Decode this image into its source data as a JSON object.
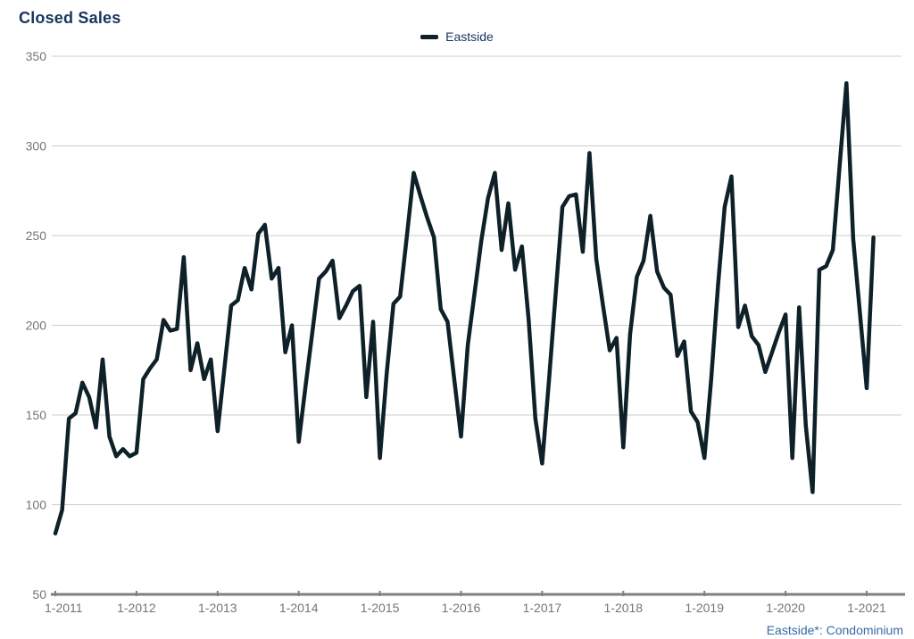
{
  "title": "Closed Sales",
  "legend": {
    "label": "Eastside"
  },
  "footnote": "Eastside*: Condominium",
  "colors": {
    "line": "#0e2028",
    "title_text": "#17365d",
    "legend_text": "#17365d",
    "footnote_text": "#376ca5",
    "axis_line": "#7f7f7f",
    "grid_line": "#cdcdcd",
    "tick_label": "#757575"
  },
  "chart_data": {
    "type": "line",
    "title": "Closed Sales",
    "series_name": "Eastside",
    "legend_position": "top-center",
    "grid": true,
    "ylim": [
      50,
      350
    ],
    "y_ticks": [
      50,
      100,
      150,
      200,
      250,
      300,
      350
    ],
    "x_tick_labels": [
      "1-2011",
      "1-2012",
      "1-2013",
      "1-2014",
      "1-2015",
      "1-2016",
      "1-2017",
      "1-2018",
      "1-2019",
      "1-2020",
      "1-2021"
    ],
    "x_is_monthly_from": "1-2011",
    "x_last_point": "2-2021",
    "series": [
      {
        "name": "Eastside",
        "monthly_values_by_year": {
          "2011": [
            84,
            97,
            148,
            151,
            168,
            160,
            143,
            181,
            138,
            127,
            131,
            127
          ],
          "2012": [
            129,
            170,
            176,
            181,
            203,
            197,
            198,
            238,
            175,
            190,
            170,
            181
          ],
          "2013": [
            141,
            176,
            211,
            214,
            232,
            220,
            251,
            256,
            226,
            232,
            185,
            200
          ],
          "2014": [
            135,
            166,
            196,
            226,
            230,
            236,
            204,
            211,
            219,
            222,
            160,
            202
          ],
          "2015": [
            126,
            173,
            212,
            216,
            250,
            285,
            272,
            260,
            249,
            209,
            202,
            170
          ],
          "2016": [
            138,
            189,
            218,
            247,
            271,
            285,
            242,
            268,
            231,
            244,
            203,
            148
          ],
          "2017": [
            123,
            169,
            218,
            266,
            272,
            273,
            241,
            296,
            237,
            211,
            186,
            193
          ],
          "2018": [
            132,
            195,
            227,
            236,
            261,
            230,
            221,
            217,
            183,
            191,
            152,
            146
          ],
          "2019": [
            126,
            170,
            222,
            266,
            283,
            199,
            211,
            194,
            189,
            174,
            185,
            196
          ],
          "2020": [
            206,
            126,
            210,
            144,
            107,
            231,
            233,
            242,
            289,
            335,
            248,
            207
          ],
          "2021": [
            165,
            249
          ]
        }
      }
    ]
  }
}
